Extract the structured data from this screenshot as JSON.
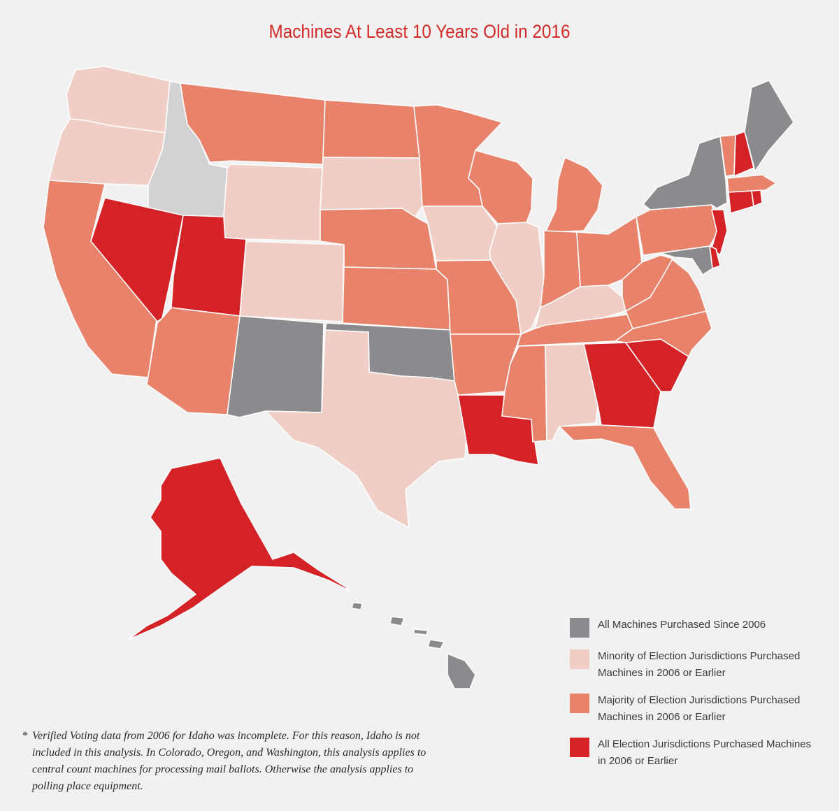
{
  "title": "Machines At Least 10 Years Old in 2016",
  "colors": {
    "since_2006": "#8b8b8d",
    "minority": "#f0cdc5",
    "majority": "#e8826b",
    "all": "#d42227",
    "no_data": "#d2d2d2"
  },
  "legend": [
    {
      "category": "since_2006",
      "label": "All Machines Purchased Since 2006"
    },
    {
      "category": "minority",
      "label": "Minority of Election Jurisdictions Purchased Machines in 2006 or Earlier"
    },
    {
      "category": "majority",
      "label": "Majority of Election Jurisdictions Purchased Machines in 2006 or Earlier"
    },
    {
      "category": "all",
      "label": "All Election Jurisdictions Purchased Machines in 2006 or Earlier"
    }
  ],
  "states": {
    "WA": "minority",
    "OR": "minority",
    "CA": "majority",
    "ID": "no_data",
    "NV": "all",
    "UT": "all",
    "AZ": "majority",
    "MT": "majority",
    "WY": "minority",
    "CO": "minority",
    "NM": "since_2006",
    "ND": "majority",
    "SD": "minority",
    "NE": "majority",
    "KS": "majority",
    "OK": "since_2006",
    "TX": "minority",
    "MN": "majority",
    "IA": "minority",
    "MO": "majority",
    "AR": "majority",
    "LA": "all",
    "WI": "majority",
    "IL": "minority",
    "MI": "majority",
    "IN": "majority",
    "OH": "majority",
    "KY": "minority",
    "TN": "majority",
    "MS": "majority",
    "AL": "minority",
    "GA": "all",
    "FL": "majority",
    "SC": "all",
    "NC": "majority",
    "VA": "majority",
    "WV": "majority",
    "PA": "majority",
    "NY": "since_2006",
    "VT": "majority",
    "NH": "all",
    "ME": "since_2006",
    "MA": "majority",
    "RI": "all",
    "CT": "all",
    "NJ": "all",
    "DE": "all",
    "MD": "since_2006",
    "AK": "all",
    "HI": "since_2006"
  },
  "footnote": {
    "marker": "*",
    "text": "Verified Voting data from 2006 for Idaho was incomplete. For this reason, Idaho is not included in this analysis. In Colorado, Oregon, and Washington, this analysis applies to central count machines for processing mail ballots. Otherwise the analysis applies to polling place equipment."
  }
}
